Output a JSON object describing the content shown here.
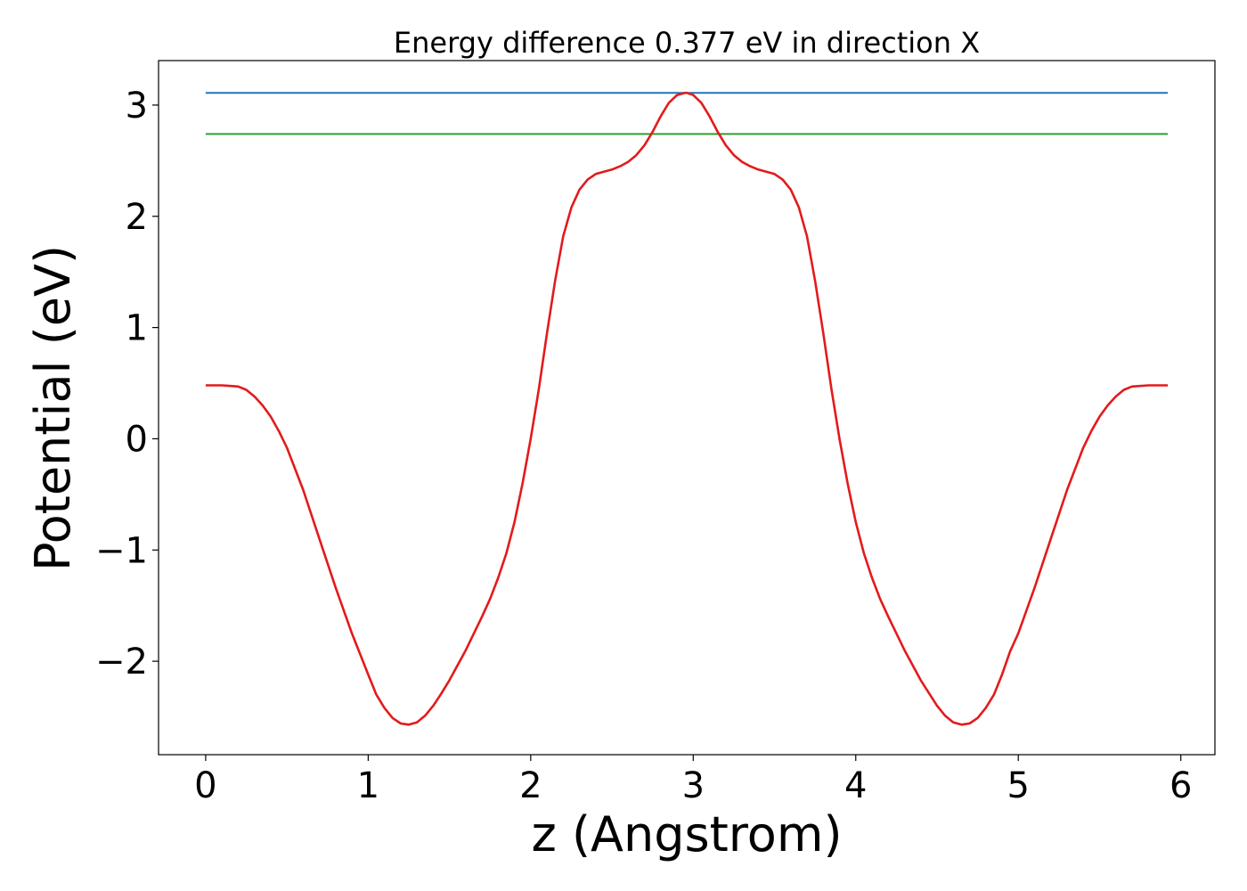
{
  "chart_data": {
    "type": "line",
    "title": "Energy difference 0.377 eV in direction X",
    "xlabel": "z (Angstrom)",
    "ylabel": "Potential (eV)",
    "xlim": [
      -0.29,
      6.21
    ],
    "ylim": [
      -2.84,
      3.4
    ],
    "xticks": [
      0,
      1,
      2,
      3,
      4,
      5,
      6
    ],
    "xtick_labels": [
      "0",
      "1",
      "2",
      "3",
      "4",
      "5",
      "6"
    ],
    "yticks": [
      -2,
      -1,
      0,
      1,
      2,
      3
    ],
    "ytick_labels": [
      "−2",
      "−1",
      "0",
      "1",
      "2",
      "3"
    ],
    "grid": false,
    "series": [
      {
        "color": "#1f77b4",
        "kind": "hline",
        "x": [
          0,
          5.92
        ],
        "y": [
          3.11,
          3.11
        ]
      },
      {
        "color": "#2ca02c",
        "kind": "hline",
        "x": [
          0,
          5.92
        ],
        "y": [
          2.74,
          2.74
        ]
      },
      {
        "color": "#e31a1c",
        "kind": "curve",
        "x": [
          0.0,
          0.1,
          0.2,
          0.25,
          0.3,
          0.35,
          0.4,
          0.45,
          0.5,
          0.6,
          0.7,
          0.8,
          0.9,
          1.0,
          1.05,
          1.1,
          1.15,
          1.2,
          1.25,
          1.3,
          1.35,
          1.4,
          1.45,
          1.5,
          1.6,
          1.7,
          1.75,
          1.8,
          1.85,
          1.9,
          1.95,
          2.0,
          2.05,
          2.1,
          2.15,
          2.2,
          2.25,
          2.3,
          2.35,
          2.4,
          2.45,
          2.5,
          2.55,
          2.6,
          2.65,
          2.7,
          2.75,
          2.8,
          2.85,
          2.9,
          2.95,
          2.96,
          3.0,
          3.05,
          3.1,
          3.15,
          3.2,
          3.25,
          3.3,
          3.35,
          3.4,
          3.45,
          3.5,
          3.55,
          3.6,
          3.65,
          3.7,
          3.75,
          3.8,
          3.85,
          3.9,
          3.95,
          4.0,
          4.05,
          4.1,
          4.15,
          4.2,
          4.3,
          4.4,
          4.5,
          4.55,
          4.6,
          4.65,
          4.7,
          4.75,
          4.8,
          4.85,
          4.9,
          4.95,
          5.0,
          5.1,
          5.2,
          5.3,
          5.4,
          5.45,
          5.5,
          5.55,
          5.6,
          5.65,
          5.7,
          5.8,
          5.92
        ],
        "y": [
          0.48,
          0.48,
          0.47,
          0.44,
          0.38,
          0.3,
          0.2,
          0.07,
          -0.08,
          -0.46,
          -0.9,
          -1.34,
          -1.75,
          -2.12,
          -2.3,
          -2.42,
          -2.51,
          -2.56,
          -2.57,
          -2.55,
          -2.49,
          -2.4,
          -2.29,
          -2.17,
          -1.9,
          -1.6,
          -1.44,
          -1.25,
          -1.03,
          -0.75,
          -0.4,
          0.0,
          0.45,
          0.95,
          1.42,
          1.82,
          2.08,
          2.24,
          2.33,
          2.38,
          2.4,
          2.42,
          2.45,
          2.49,
          2.55,
          2.64,
          2.76,
          2.9,
          3.02,
          3.09,
          3.11,
          3.11,
          3.09,
          3.02,
          2.9,
          2.76,
          2.64,
          2.55,
          2.49,
          2.45,
          2.42,
          2.4,
          2.38,
          2.33,
          2.24,
          2.08,
          1.82,
          1.42,
          0.95,
          0.45,
          0.0,
          -0.4,
          -0.75,
          -1.03,
          -1.25,
          -1.44,
          -1.6,
          -1.9,
          -2.17,
          -2.4,
          -2.49,
          -2.55,
          -2.57,
          -2.56,
          -2.51,
          -2.42,
          -2.3,
          -2.12,
          -1.91,
          -1.75,
          -1.34,
          -0.9,
          -0.46,
          -0.08,
          0.07,
          0.2,
          0.3,
          0.38,
          0.44,
          0.47,
          0.48,
          0.48
        ]
      }
    ]
  }
}
